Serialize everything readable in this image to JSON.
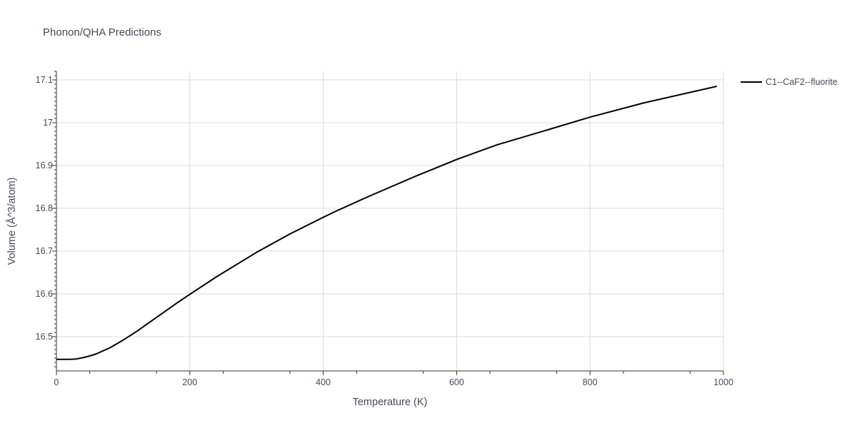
{
  "chart_data": {
    "type": "line",
    "title": "Phonon/QHA Predictions",
    "xlabel": "Temperature (K)",
    "ylabel": "Volume (Å^3/atom)",
    "xlim": [
      0,
      1000
    ],
    "ylim": [
      16.42,
      17.12
    ],
    "x_ticks": [
      0,
      200,
      400,
      600,
      800,
      1000
    ],
    "x_tick_labels": [
      "0",
      "200",
      "400",
      "600",
      "800",
      "1000"
    ],
    "y_ticks": [
      16.5,
      16.6,
      16.7,
      16.8,
      16.9,
      17.0,
      17.1
    ],
    "y_tick_labels": [
      "16.5",
      "16.6",
      "16.7",
      "16.8",
      "16.9",
      "17",
      "17.1"
    ],
    "grid": true,
    "legend_position": "top-right",
    "series": [
      {
        "name": "C1--CaF2--fluorite",
        "color": "#000000",
        "x": [
          0,
          10,
          20,
          30,
          40,
          50,
          60,
          70,
          80,
          90,
          100,
          120,
          140,
          160,
          180,
          200,
          240,
          280,
          300,
          350,
          400,
          420,
          470,
          540,
          600,
          660,
          740,
          800,
          880,
          990
        ],
        "y": [
          16.447,
          16.447,
          16.447,
          16.448,
          16.451,
          16.455,
          16.46,
          16.467,
          16.474,
          16.483,
          16.492,
          16.512,
          16.534,
          16.556,
          16.578,
          16.599,
          16.64,
          16.678,
          16.697,
          16.74,
          16.779,
          16.794,
          16.829,
          16.876,
          16.914,
          16.948,
          16.985,
          17.013,
          17.046,
          17.085
        ]
      }
    ]
  }
}
